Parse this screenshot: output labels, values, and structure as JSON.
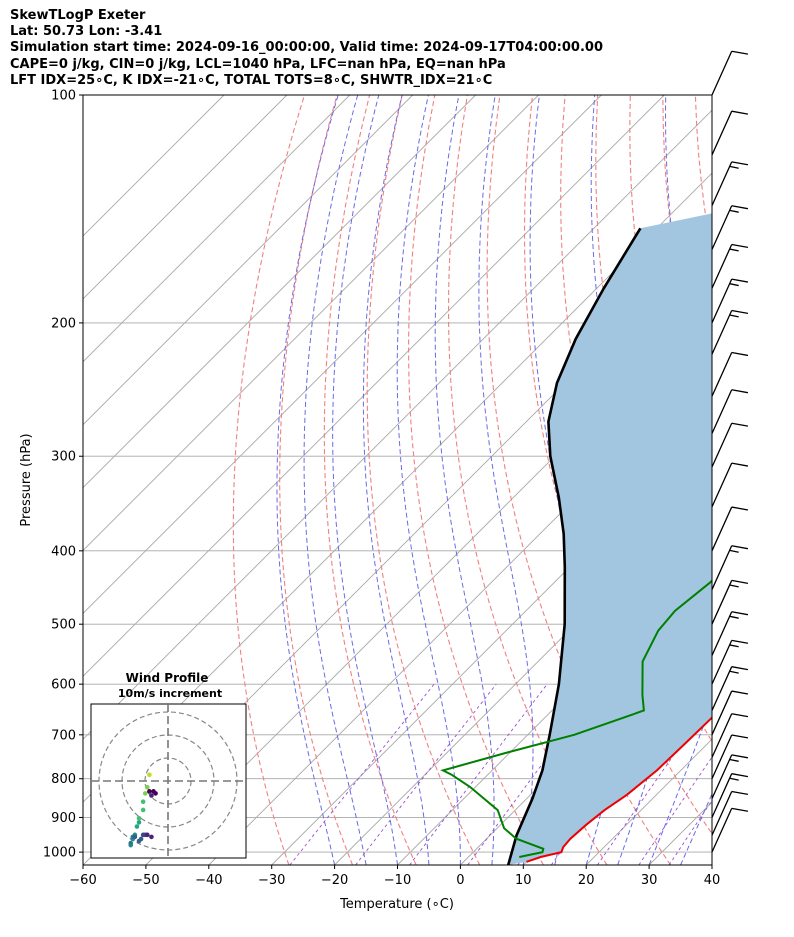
{
  "header": {
    "line1": "SkewTLogP Exeter",
    "line2": "Lat: 50.73   Lon: -3.41",
    "line3": "Simulation start time: 2024-09-16_00:00:00, Valid time: 2024-09-17T04:00:00.00",
    "line4": "CAPE=0 j/kg, CIN=0 j/kg, LCL=1040 hPa, LFC=nan hPa, EQ=nan hPa",
    "line5": "LFT IDX=25∘C, K IDX=-21∘C, TOTAL TOTS=8∘C, SHWTR_IDX=21∘C"
  },
  "inset": {
    "title": "Wind Profile",
    "subtitle": "10m/s increment"
  },
  "colors": {
    "temperature": "#ee0000",
    "dewpoint": "#008000",
    "parcel": "#000000",
    "cape_fill": "#a2c6e0",
    "dry_adiabat": "#f08080",
    "moist_adiabat": "#6a6ae8",
    "mixing_ratio": "#9a4fd0",
    "isotherm": "#a8a8a8"
  },
  "chart_data": {
    "type": "line",
    "title": "SkewTLogP Exeter",
    "xlabel": "Temperature (∘C)",
    "ylabel": "Pressure (hPa)",
    "xlim": [
      -60,
      40
    ],
    "ylim": [
      1040,
      100
    ],
    "y_scale": "log",
    "grid": true,
    "x_ticks": [
      "−60",
      "−50",
      "−40",
      "−30",
      "−20",
      "−10",
      "0",
      "10",
      "20",
      "30",
      "40"
    ],
    "y_ticks": [
      "100",
      "200",
      "300",
      "400",
      "500",
      "600",
      "700",
      "800",
      "900",
      "1000"
    ],
    "series": [
      {
        "kind": "temperature",
        "x": [
          10,
          11.5,
          14,
          13.5,
          13.3,
          13.6,
          14.2,
          15.3,
          16.2,
          16.4,
          16.6,
          16.8,
          16.8,
          16.6,
          15.9,
          13.8,
          10.3,
          4.7,
          2.2,
          0.6,
          -2.7,
          -5.6,
          -9.2,
          -9.9,
          -9.7,
          -10.4,
          -9.2,
          -5.6,
          1.0,
          7.9
        ],
        "y": [
          1030,
          1015,
          1000,
          985,
          960,
          920,
          880,
          840,
          780,
          720,
          650,
          610,
          580,
          550,
          510,
          450,
          380,
          320,
          300,
          280,
          240,
          210,
          190,
          170,
          155,
          140,
          130,
          120,
          110,
          100
        ]
      },
      {
        "kind": "dewpoint",
        "x": [
          8.1,
          11.0,
          10.6,
          4.7,
          1.1,
          -2.8,
          -10.9,
          -15.8,
          -17.8,
          -10.7,
          -2.6,
          4.6,
          1.9,
          -3.4,
          -5.8,
          -6.3,
          -5.2,
          -5.2,
          -5.2,
          -5.1,
          -5.4,
          -5.2,
          -7.5,
          -11.0,
          -13.3,
          -13.6,
          -12.5,
          -13.9,
          -9.6,
          -9.8
        ],
        "y": [
          1015,
          1000,
          990,
          960,
          930,
          880,
          820,
          790,
          780,
          740,
          700,
          650,
          620,
          560,
          510,
          480,
          440,
          400,
          360,
          340,
          310,
          290,
          250,
          200,
          180,
          160,
          145,
          120,
          110,
          100
        ]
      },
      {
        "kind": "parcel",
        "x": [
          7.6,
          4.2,
          0.9,
          -2.0,
          -6.5,
          -13.1,
          -21.7,
          -30.8,
          -36.2,
          -42.8,
          -50.7,
          -56.5,
          -61.3,
          -65.3,
          -68.9,
          -72.6
        ],
        "y": [
          1040,
          950,
          850,
          780,
          700,
          600,
          500,
          420,
          380,
          340,
          300,
          270,
          240,
          210,
          180,
          150
        ]
      }
    ],
    "wind_barbs": {
      "p": [
        100,
        120,
        140,
        160,
        180,
        200,
        220,
        250,
        280,
        310,
        350,
        400,
        450,
        500,
        550,
        600,
        650,
        700,
        750,
        800,
        850,
        900,
        950,
        1000
      ],
      "speed_kt": [
        10,
        10,
        15,
        15,
        15,
        15,
        15,
        10,
        10,
        10,
        10,
        10,
        15,
        15,
        15,
        15,
        15,
        10,
        10,
        10,
        15,
        15,
        10,
        10
      ]
    },
    "hodograph": {
      "type": "scatter",
      "rings_mps": [
        10,
        20,
        30
      ],
      "u": [
        -9,
        -10,
        -11,
        -12,
        -12,
        -14,
        -14,
        -15,
        -16,
        -17,
        -18,
        -18,
        -17,
        -16,
        -14,
        -13,
        -12,
        -11,
        -10,
        -8,
        -8,
        -6,
        -7,
        -9
      ],
      "v": [
        3,
        -3,
        -6,
        -10,
        -14,
        -18,
        -20,
        -22,
        -26,
        -28,
        -31,
        -30,
        -27,
        -27,
        -29,
        -28,
        -26,
        -26,
        -26,
        -27,
        -7,
        -6,
        -5,
        -5
      ]
    }
  }
}
